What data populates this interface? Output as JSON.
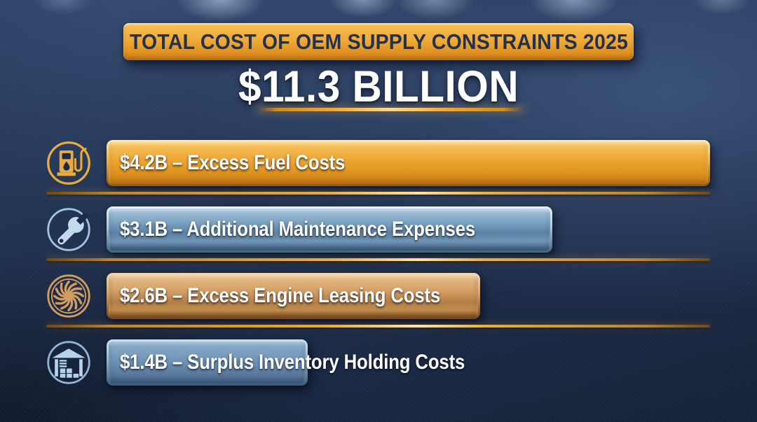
{
  "header": {
    "banner_title": "TOTAL COST OF OEM SUPPLY CONSTRAINTS 2025",
    "total_amount": "$11.3 BILLION"
  },
  "chart_data": {
    "type": "bar",
    "orientation": "horizontal",
    "title": "TOTAL COST OF OEM SUPPLY CONSTRAINTS 2025",
    "total_label": "$11.3 BILLION",
    "total_value_billions_usd": 11.3,
    "unit": "USD billions",
    "legend": "none",
    "axes": "none - bar lengths proportional to values, labels printed on bars",
    "items": [
      {
        "amount": "$4.2B",
        "value_billions_usd": 4.2,
        "category": "Excess Fuel Costs",
        "label": "$4.2B – Excess Fuel Costs",
        "icon": "fuel-pump-icon",
        "bar_color_hex": "#efa938"
      },
      {
        "amount": "$3.1B",
        "value_billions_usd": 3.1,
        "category": "Additional Maintenance Expenses",
        "label": "$3.1B – Additional Maintenance Expenses",
        "icon": "wrench-icon",
        "bar_color_hex": "#5a81a5"
      },
      {
        "amount": "$2.6B",
        "value_billions_usd": 2.6,
        "category": "Excess Engine Leasing Costs",
        "label": "$2.6B – Excess Engine Leasing Costs",
        "icon": "jet-engine-turbine-icon",
        "bar_color_hex": "#b57d42"
      },
      {
        "amount": "$1.4B",
        "value_billions_usd": 1.4,
        "category": "Surplus Inventory Holding Costs",
        "label": "$1.4B – Surplus Inventory Holding Costs",
        "icon": "warehouse-icon",
        "bar_color_hex": "#6f94b6"
      }
    ],
    "colors": {
      "background_navy": "#1f2f4e",
      "accent_gold": "#efa935",
      "divider_gold": "#e8a93c",
      "text_white": "#ffffff",
      "banner_text_navy": "#222f4e"
    }
  }
}
